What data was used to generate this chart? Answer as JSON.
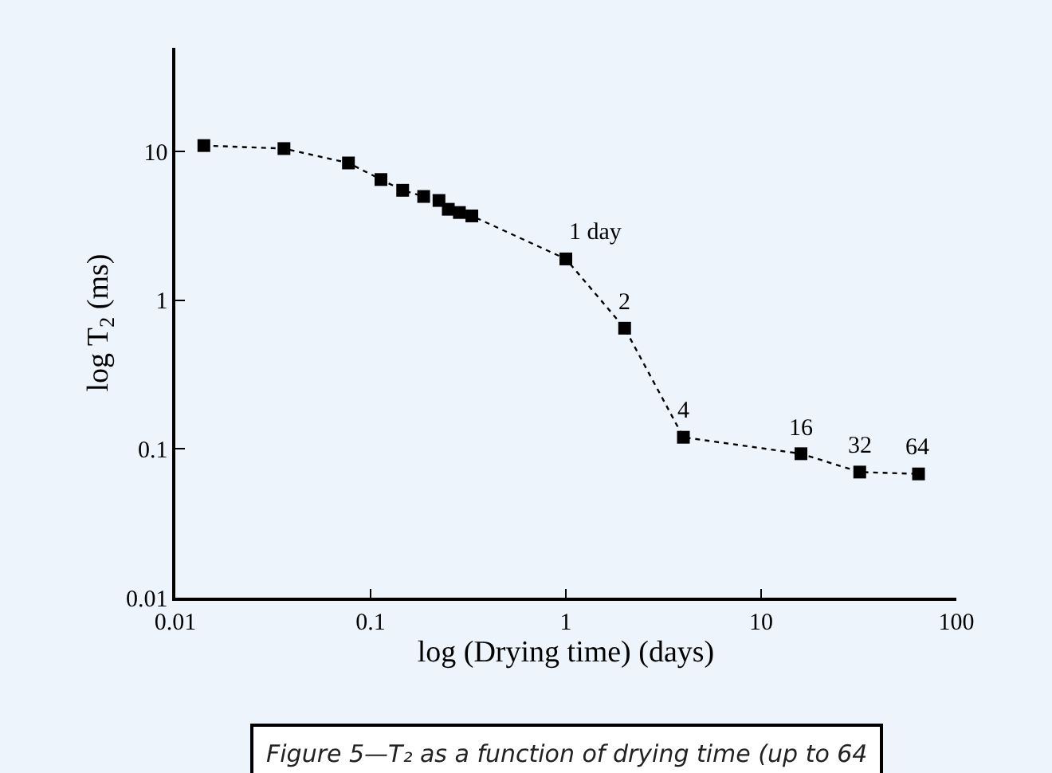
{
  "chart_data": {
    "type": "line",
    "xlabel": "log (Drying time) (days)",
    "ylabel": "log T$_{2}$ (ms)",
    "x": [
      0.014,
      0.036,
      0.077,
      0.113,
      0.146,
      0.187,
      0.224,
      0.25,
      0.285,
      0.33,
      1,
      2,
      4,
      16,
      32,
      64
    ],
    "series": [
      {
        "color": "#000000",
        "values": [
          11,
          10.5,
          8.4,
          6.5,
          5.5,
          5.0,
          4.7,
          4.1,
          3.9,
          3.7,
          1.9,
          0.65,
          0.12,
          0.093,
          0.07,
          0.068
        ]
      }
    ],
    "log": "xy",
    "xlim": [
      0.01,
      100
    ],
    "ylim": [
      0.01,
      50
    ],
    "xticks": [
      0.01,
      0.1,
      1,
      10,
      100
    ],
    "yticks": [
      0.01,
      0.1,
      1,
      10
    ],
    "marker": "square",
    "line_style": "dotted",
    "grid": false,
    "annotations": [
      {
        "text": "1 day",
        "x": 1,
        "y": 1.9
      },
      {
        "text": "2",
        "x": 2,
        "y": 0.65
      },
      {
        "text": "4",
        "x": 4,
        "y": 0.12
      },
      {
        "text": "16",
        "x": 16,
        "y": 0.093
      },
      {
        "text": "32",
        "x": 32,
        "y": 0.07
      },
      {
        "text": "64",
        "x": 64,
        "y": 0.068
      },
      "Figure 5—T₂ as a function of drying time (up to 64"
    ]
  }
}
